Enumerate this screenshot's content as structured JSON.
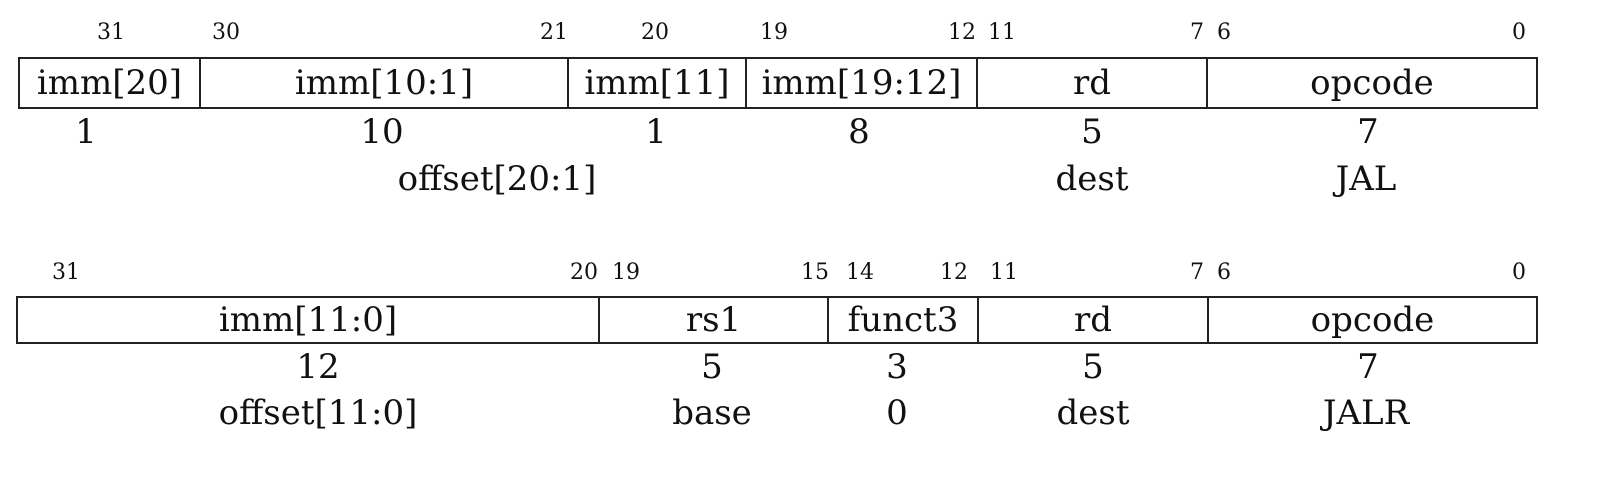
{
  "jal": {
    "bits": {
      "b31": "31",
      "b30": "30",
      "b21": "21",
      "b20": "20",
      "b19": "19",
      "b12": "12",
      "b11": "11",
      "b7": "7",
      "b6": "6",
      "b0": "0"
    },
    "fields": [
      "imm[20]",
      "imm[10:1]",
      "imm[11]",
      "imm[19:12]",
      "rd",
      "opcode"
    ],
    "widths": [
      "1",
      "10",
      "1",
      "8",
      "5",
      "7"
    ],
    "desc": {
      "offset": "offset[20:1]",
      "dest": "dest",
      "op": "JAL"
    }
  },
  "jalr": {
    "bits": {
      "b31": "31",
      "b20": "20",
      "b19": "19",
      "b15": "15",
      "b14": "14",
      "b12": "12",
      "b11": "11",
      "b7": "7",
      "b6": "6",
      "b0": "0"
    },
    "fields": [
      "imm[11:0]",
      "rs1",
      "funct3",
      "rd",
      "opcode"
    ],
    "widths": [
      "12",
      "5",
      "3",
      "5",
      "7"
    ],
    "desc": {
      "offset": "offset[11:0]",
      "base": "base",
      "funct3": "0",
      "dest": "dest",
      "op": "JALR"
    }
  }
}
